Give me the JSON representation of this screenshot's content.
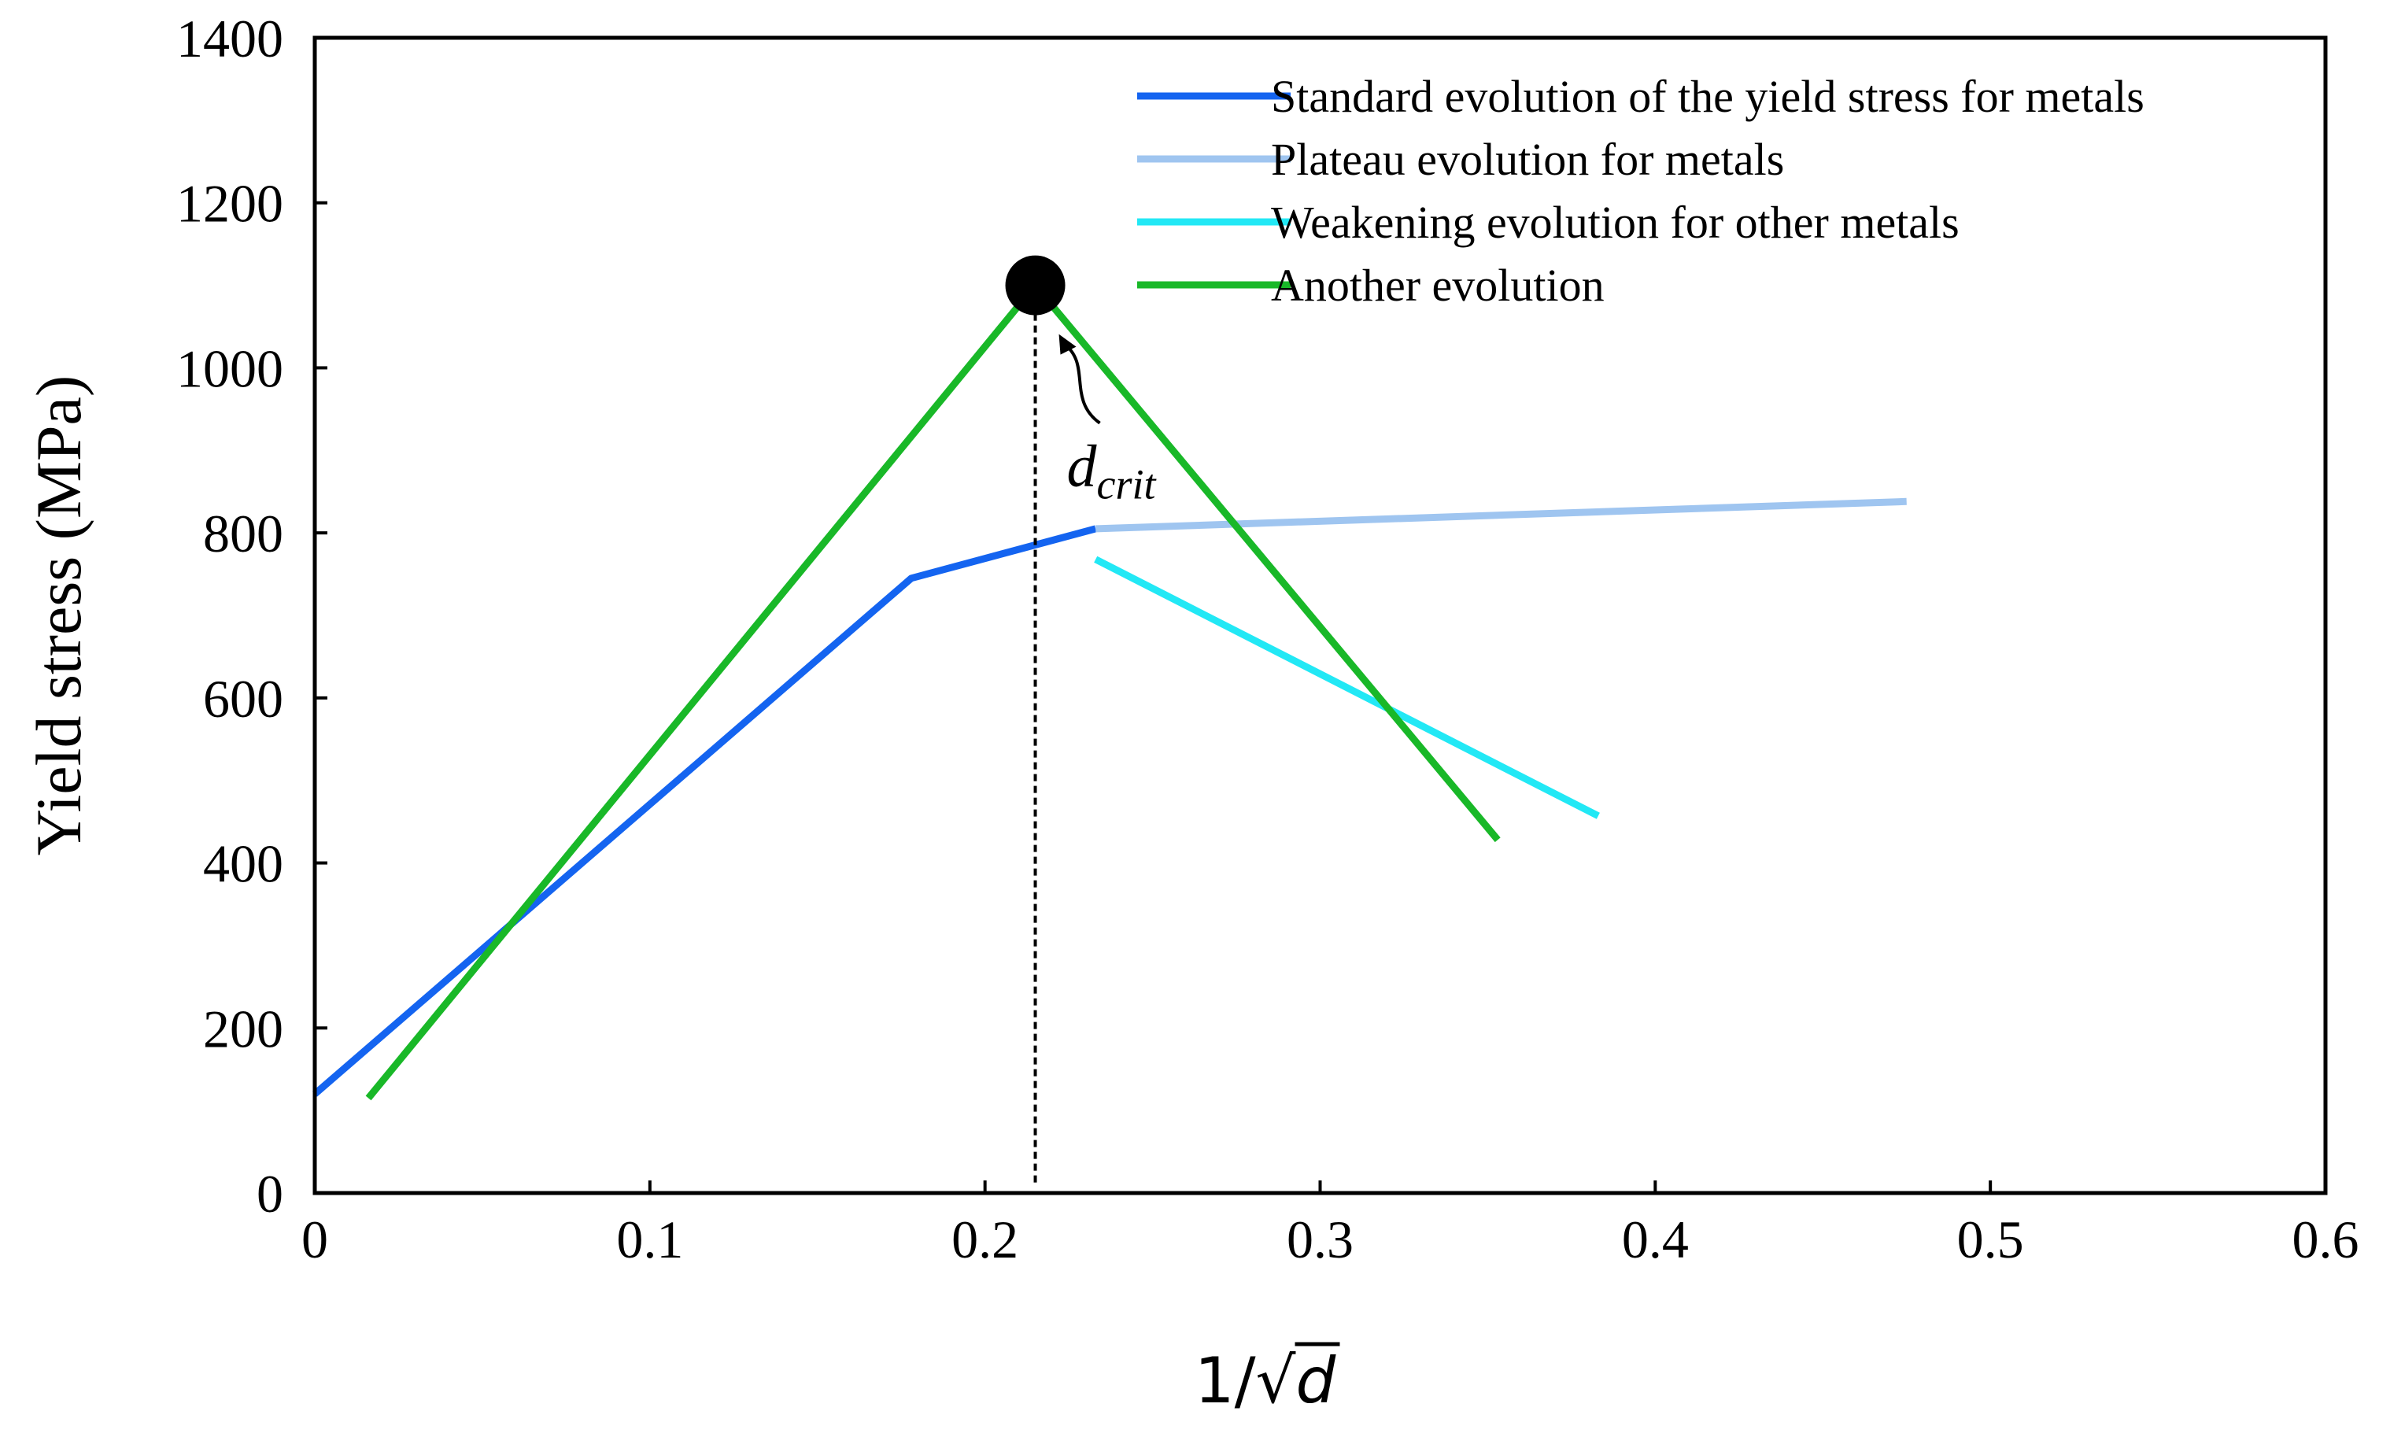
{
  "chart_data": {
    "type": "line",
    "title": "",
    "xlabel": "1/√",
    "xlabel_var": "d",
    "ylabel": "Yield stress (MPa)",
    "xlim": [
      0,
      0.6
    ],
    "ylim": [
      0,
      1400
    ],
    "x_ticks": [
      0,
      0.1,
      0.2,
      0.3,
      0.4,
      0.5,
      0.6
    ],
    "x_tick_labels": [
      "0",
      "0.1",
      "0.2",
      "0.3",
      "0.4",
      "0.5",
      "0.6"
    ],
    "y_ticks": [
      0,
      200,
      400,
      600,
      800,
      1000,
      1200,
      1400
    ],
    "y_tick_labels": [
      "0",
      "200",
      "400",
      "600",
      "800",
      "1000",
      "1200",
      "1400"
    ],
    "grid": false,
    "legend_position": "top-right",
    "series": [
      {
        "name": "Standard evolution of the yield stress for metals",
        "color": "#1464f0",
        "x": [
          0.0,
          0.178,
          0.233
        ],
        "y": [
          120,
          745,
          805
        ]
      },
      {
        "name": "Plateau evolution for metals",
        "color": "#9fc5f0",
        "x": [
          0.233,
          0.475
        ],
        "y": [
          805,
          838
        ]
      },
      {
        "name": "Weakening evolution for other metals",
        "color": "#22e8f5",
        "x": [
          0.233,
          0.383
        ],
        "y": [
          768,
          457
        ]
      },
      {
        "name": "Another evolution",
        "color": "#19b828",
        "x": [
          0.016,
          0.215,
          0.353
        ],
        "y": [
          115,
          1100,
          428
        ]
      }
    ],
    "critical_point": {
      "x": 0.215,
      "y": 1100
    },
    "annotation": {
      "text": "d",
      "subscript": "crit"
    }
  }
}
